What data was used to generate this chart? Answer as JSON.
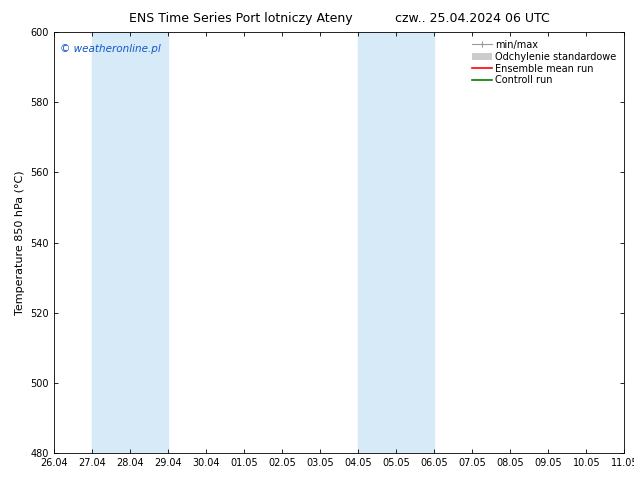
{
  "title_left": "ENS Time Series Port lotniczy Ateny",
  "title_right": "czw.. 25.04.2024 06 UTC",
  "ylabel": "Temperature 850 hPa (°C)",
  "ylim": [
    480,
    600
  ],
  "yticks": [
    480,
    500,
    520,
    540,
    560,
    580,
    600
  ],
  "watermark": "© weatheronline.pl",
  "watermark_color": "#1155cc",
  "background_color": "#ffffff",
  "plot_bg_color": "#ffffff",
  "shade_bands": [
    {
      "x_start": 1.0,
      "x_end": 3.0,
      "color": "#d6eaf8"
    },
    {
      "x_start": 8.0,
      "x_end": 10.0,
      "color": "#d6eaf8"
    }
  ],
  "xtick_labels": [
    "26.04",
    "27.04",
    "28.04",
    "29.04",
    "30.04",
    "01.05",
    "02.05",
    "03.05",
    "04.05",
    "05.05",
    "06.05",
    "07.05",
    "08.05",
    "09.05",
    "10.05",
    "11.05"
  ],
  "xtick_positions": [
    0,
    1,
    2,
    3,
    4,
    5,
    6,
    7,
    8,
    9,
    10,
    11,
    12,
    13,
    14,
    15
  ],
  "legend_labels": [
    "min/max",
    "Odchylenie standardowe",
    "Ensemble mean run",
    "Controll run"
  ],
  "legend_colors": [
    "#999999",
    "#cccccc",
    "#ff0000",
    "#008000"
  ],
  "title_fontsize": 9,
  "axis_label_fontsize": 8,
  "tick_fontsize": 7,
  "legend_fontsize": 7,
  "watermark_fontsize": 7.5
}
